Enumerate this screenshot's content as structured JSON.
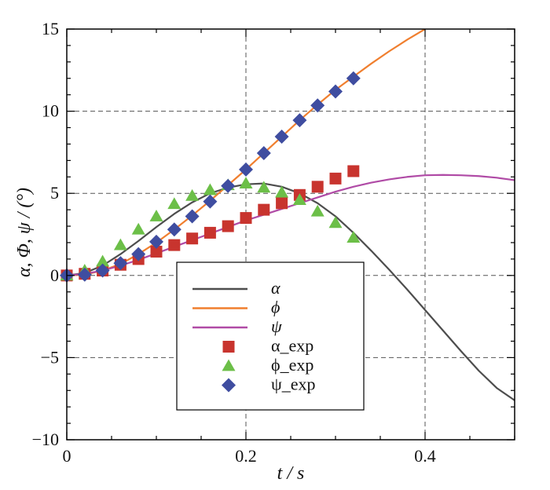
{
  "chart_data": {
    "type": "line",
    "title": "",
    "xlabel": "t / s",
    "ylabel": "α, Φ, ψ / (°)",
    "xlim": [
      0,
      0.5
    ],
    "ylim": [
      -10,
      15
    ],
    "xticks": [
      "0",
      "0.2",
      "0.4"
    ],
    "xtick_values": [
      0,
      0.2,
      0.4
    ],
    "yticks": [
      "15",
      "10",
      "5",
      "0",
      "−5",
      "−10"
    ],
    "ytick_values": [
      15,
      10,
      5,
      0,
      -5,
      -10
    ],
    "grid": true,
    "legend_position": "bottom-center",
    "series": [
      {
        "name": "α",
        "kind": "line",
        "color": "#4d4d4d",
        "x": [
          0,
          0.02,
          0.04,
          0.06,
          0.08,
          0.1,
          0.12,
          0.14,
          0.16,
          0.18,
          0.2,
          0.22,
          0.24,
          0.26,
          0.28,
          0.3,
          0.32,
          0.34,
          0.36,
          0.38,
          0.4,
          0.42,
          0.44,
          0.46,
          0.48,
          0.5
        ],
        "y": [
          0,
          0.15,
          0.6,
          1.3,
          2.1,
          2.95,
          3.75,
          4.45,
          5.0,
          5.35,
          5.55,
          5.6,
          5.4,
          5.0,
          4.4,
          3.6,
          2.6,
          1.5,
          0.35,
          -0.85,
          -2.1,
          -3.35,
          -4.6,
          -5.8,
          -6.85,
          -7.6
        ]
      },
      {
        "name": "ϕ",
        "kind": "line",
        "color": "#f07f2f",
        "x": [
          0,
          0.02,
          0.04,
          0.06,
          0.08,
          0.1,
          0.12,
          0.14,
          0.16,
          0.18,
          0.2,
          0.22,
          0.24,
          0.26,
          0.28,
          0.3,
          0.32,
          0.34,
          0.36,
          0.38,
          0.4
        ],
        "y": [
          0,
          0.05,
          0.3,
          0.7,
          1.3,
          2.0,
          2.8,
          3.65,
          4.55,
          5.5,
          6.45,
          7.45,
          8.45,
          9.45,
          10.4,
          11.3,
          12.1,
          12.9,
          13.65,
          14.35,
          15.0
        ]
      },
      {
        "name": "ψ",
        "kind": "line",
        "color": "#b04ba6",
        "x": [
          0,
          0.02,
          0.04,
          0.06,
          0.08,
          0.1,
          0.12,
          0.14,
          0.16,
          0.18,
          0.2,
          0.22,
          0.24,
          0.26,
          0.28,
          0.3,
          0.32,
          0.34,
          0.36,
          0.38,
          0.4,
          0.42,
          0.44,
          0.46,
          0.48,
          0.5
        ],
        "y": [
          0,
          0.1,
          0.3,
          0.6,
          0.95,
          1.35,
          1.75,
          2.15,
          2.55,
          2.95,
          3.35,
          3.7,
          4.05,
          4.4,
          4.75,
          5.1,
          5.4,
          5.65,
          5.85,
          6.0,
          6.1,
          6.12,
          6.1,
          6.05,
          5.95,
          5.8
        ]
      },
      {
        "name": "α_exp",
        "kind": "square",
        "color": "#c8342e",
        "x": [
          0,
          0.02,
          0.04,
          0.06,
          0.08,
          0.1,
          0.12,
          0.14,
          0.16,
          0.18,
          0.2,
          0.22,
          0.24,
          0.26,
          0.28,
          0.3,
          0.32
        ],
        "y": [
          0,
          0.1,
          0.3,
          0.65,
          1.0,
          1.45,
          1.85,
          2.25,
          2.6,
          3.0,
          3.5,
          4.0,
          4.4,
          4.9,
          5.4,
          5.9,
          6.35
        ]
      },
      {
        "name": "ϕ_exp",
        "kind": "triangle",
        "color": "#6cbf48",
        "x": [
          0,
          0.02,
          0.04,
          0.06,
          0.08,
          0.1,
          0.12,
          0.14,
          0.16,
          0.18,
          0.2,
          0.22,
          0.24,
          0.26,
          0.28,
          0.3,
          0.32
        ],
        "y": [
          0,
          0.3,
          0.85,
          1.85,
          2.8,
          3.6,
          4.35,
          4.85,
          5.2,
          5.5,
          5.6,
          5.35,
          5.05,
          4.6,
          3.9,
          3.2,
          2.3
        ]
      },
      {
        "name": "ψ_exp",
        "kind": "diamond",
        "color": "#3f4da0",
        "x": [
          0,
          0.02,
          0.04,
          0.06,
          0.08,
          0.1,
          0.12,
          0.14,
          0.16,
          0.18,
          0.2,
          0.22,
          0.24,
          0.26,
          0.28,
          0.3,
          0.32
        ],
        "y": [
          0,
          0.05,
          0.3,
          0.75,
          1.3,
          2.05,
          2.8,
          3.6,
          4.5,
          5.45,
          6.45,
          7.45,
          8.45,
          9.45,
          10.35,
          11.2,
          12.0
        ]
      }
    ]
  }
}
